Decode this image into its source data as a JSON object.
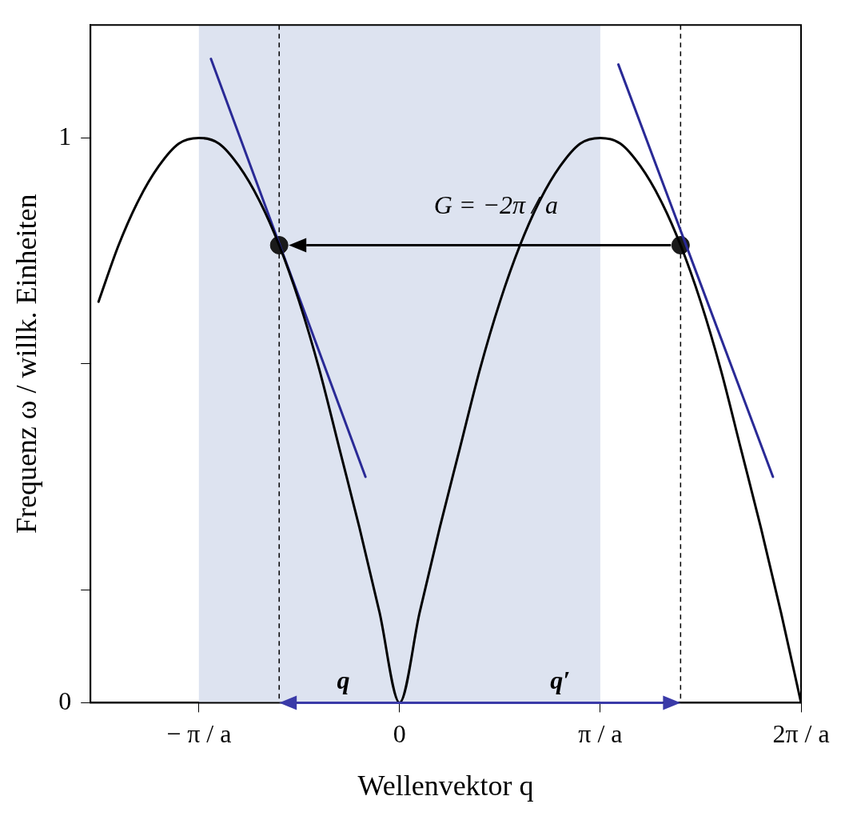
{
  "chart_data": {
    "type": "line",
    "xlabel": "Wellenvektor q",
    "ylabel": "Frequenz ω / willk. Einheiten",
    "xlim": [
      -1.54,
      2
    ],
    "ylim": [
      0,
      1.2
    ],
    "xticks": [
      {
        "value": -1,
        "label": "− π / a"
      },
      0,
      {
        "value": 1,
        "label": "π / a"
      },
      {
        "value": 2,
        "label": "2π / a"
      }
    ],
    "yticks": [
      0,
      {
        "value": 0.2,
        "label": null
      },
      {
        "value": 0.6,
        "label": null
      },
      1
    ],
    "grid": false,
    "legend": false,
    "series": [
      {
        "color": "#000000",
        "marker": "none",
        "x": [
          -1.5,
          -1.4,
          -1.3,
          -1.2,
          -1.1,
          -1.0,
          -0.9,
          -0.8,
          -0.7,
          -0.6,
          -0.5,
          -0.4,
          -0.3,
          -0.2,
          -0.1,
          0,
          0.1,
          0.2,
          0.3,
          0.4,
          0.5,
          0.6,
          0.7,
          0.8,
          0.9,
          1.0,
          1.1,
          1.2,
          1.3,
          1.4,
          1.5,
          1.6,
          1.7,
          1.8,
          1.9,
          2.0
        ],
        "values": [
          0.71,
          0.81,
          0.89,
          0.95,
          0.99,
          1.0,
          0.99,
          0.95,
          0.89,
          0.81,
          0.71,
          0.59,
          0.45,
          0.31,
          0.16,
          0,
          0.16,
          0.31,
          0.45,
          0.59,
          0.71,
          0.81,
          0.89,
          0.95,
          0.99,
          1.0,
          0.99,
          0.95,
          0.89,
          0.81,
          0.71,
          0.59,
          0.45,
          0.31,
          0.16,
          0
        ]
      },
      {
        "color": "#2a2a96",
        "marker": "none",
        "x": [
          -0.94,
          -0.17
        ],
        "values": [
          1.14,
          0.4
        ]
      },
      {
        "color": "#2a2a96",
        "marker": "none",
        "x": [
          1.09,
          1.86
        ],
        "values": [
          1.13,
          0.4
        ]
      },
      {
        "type": "scatter",
        "color": "#1a1a1a",
        "marker": "circle",
        "x": [
          -0.6,
          1.4
        ],
        "values": [
          0.81,
          0.81
        ]
      }
    ],
    "bands": [
      {
        "axis": "x",
        "from": -1,
        "to": 1,
        "color": "#dde3f0"
      }
    ],
    "ref_lines": [
      {
        "axis": "x",
        "value": -0.6,
        "color": "#000000",
        "line_style": "dashed"
      },
      {
        "axis": "x",
        "value": 1.4,
        "color": "#000000",
        "line_style": "dashed"
      }
    ],
    "annotations": [
      "G = −2π / a",
      "q",
      "q′"
    ]
  }
}
